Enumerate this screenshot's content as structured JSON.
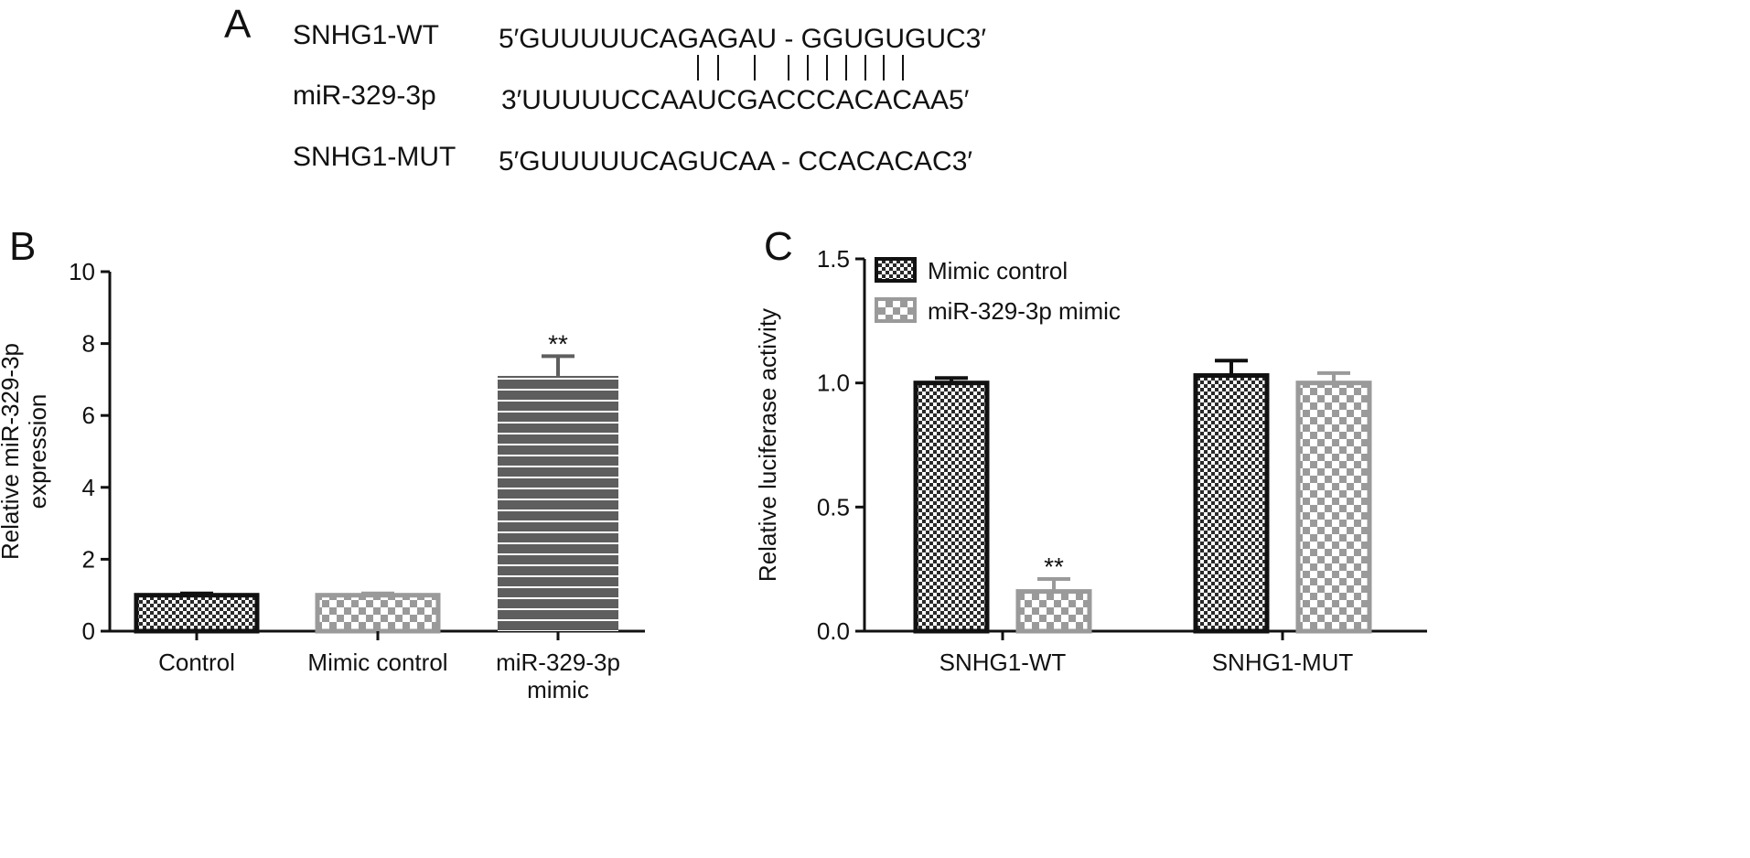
{
  "panel_a": {
    "letter": "A",
    "rows": [
      {
        "label": "SNHG1-WT",
        "sequence": "5′GUUUUUCAGAGAU - GGUGUGUC3′"
      },
      {
        "label": "miR-329-3p",
        "sequence": "3′UUUUUCCAAUCGACCCACACAA5′"
      },
      {
        "label": "SNHG1-MUT",
        "sequence": "5′GUUUUUCAGUCAA - CCACACAC3′"
      }
    ],
    "pairing_marks": 10
  },
  "panel_b_letter": "B",
  "panel_c_letter": "C",
  "colors": {
    "dark_checker_fill": "#2a2a2a",
    "light_checker_fill": "#9a9a9a",
    "striped_bar_fill": "#5e5e5e",
    "axis": "#111111"
  },
  "chart_data": [
    {
      "id": "B",
      "type": "bar",
      "ylabel": [
        "Relative miR-329-3p",
        "expression"
      ],
      "ylim": [
        0,
        10
      ],
      "yticks": [
        "0",
        "2",
        "4",
        "6",
        "8",
        "10"
      ],
      "ytick_values": [
        0,
        2,
        4,
        6,
        8,
        10
      ],
      "categories": [
        [
          "Control"
        ],
        [
          "Mimic control"
        ],
        [
          "miR-329-3p",
          "mimic"
        ]
      ],
      "values": [
        1.0,
        1.0,
        7.1
      ],
      "errors": [
        0.05,
        0.05,
        0.55
      ],
      "patterns": [
        "dark-checker",
        "light-checker",
        "stripes"
      ],
      "annotations": [
        "",
        "",
        "**"
      ]
    },
    {
      "id": "C",
      "type": "bar",
      "ylabel": [
        "Relative luciferase activity"
      ],
      "ylim": [
        0,
        1.5
      ],
      "yticks": [
        "0.0",
        "0.5",
        "1.0",
        "1.5"
      ],
      "ytick_values": [
        0,
        0.5,
        1.0,
        1.5
      ],
      "categories": [
        "SNHG1-WT",
        "SNHG1-MUT"
      ],
      "series": [
        {
          "name": "Mimic control",
          "values": [
            1.0,
            1.03
          ],
          "errors": [
            0.02,
            0.06
          ],
          "pattern": "dark-checker",
          "annotations": [
            "",
            ""
          ]
        },
        {
          "name": "miR-329-3p mimic",
          "values": [
            0.16,
            1.0
          ],
          "errors": [
            0.05,
            0.04
          ],
          "pattern": "light-checker",
          "annotations": [
            "**",
            ""
          ]
        }
      ],
      "legend": "top-left"
    }
  ]
}
